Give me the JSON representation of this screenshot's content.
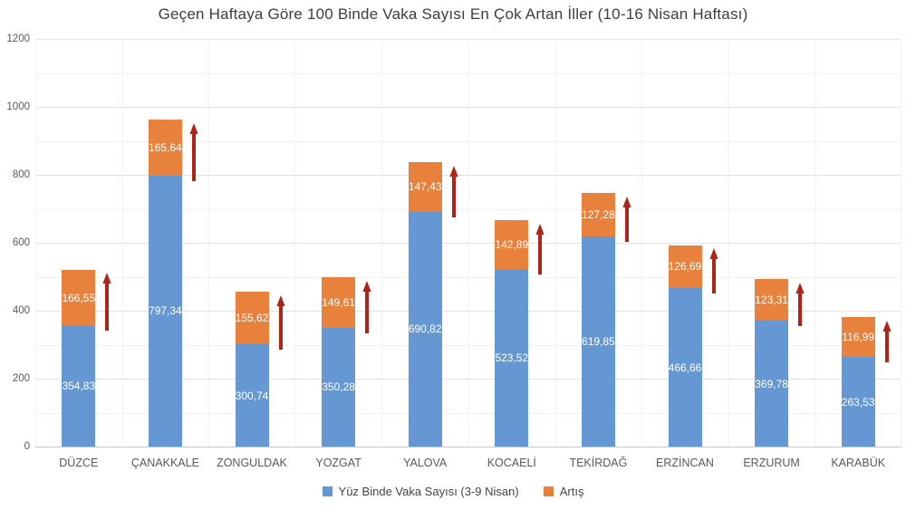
{
  "title": "Geçen Haftaya Göre 100 Binde Vaka Sayısı En Çok Artan İller (10-16 Nisan Haftası)",
  "chart_data": {
    "type": "bar",
    "stacked": true,
    "title": "Geçen Haftaya Göre 100 Binde Vaka Sayısı En Çok Artan İller (10-16 Nisan Haftası)",
    "categories": [
      "DÜZCE",
      "ÇANAKKALE",
      "ZONGULDAK",
      "YOZGAT",
      "YALOVA",
      "KOCAELİ",
      "TEKİRDAĞ",
      "ERZİNCAN",
      "ERZURUM",
      "KARABÜK"
    ],
    "series": [
      {
        "name": "Yüz Binde Vaka Sayısı (3-9 Nisan)",
        "color": "#6598d2",
        "values": [
          354.83,
          797.34,
          300.74,
          350.28,
          690.82,
          523.52,
          619.85,
          466.66,
          369.78,
          263.53
        ],
        "labels": [
          "354,83",
          "797,34",
          "300,74",
          "350,28",
          "690,82",
          "523,52",
          "619,85",
          "466,66",
          "369,78",
          "263,53"
        ]
      },
      {
        "name": "Artış",
        "color": "#e8813b",
        "values": [
          166.55,
          165.64,
          155.62,
          149.61,
          147.43,
          142.89,
          127.28,
          126.69,
          123.31,
          116.99
        ],
        "labels": [
          "166,55",
          "165,64",
          "155,62",
          "149,61",
          "147,43",
          "142,89",
          "127,28",
          "126,69",
          "123,31",
          "116,99"
        ]
      }
    ],
    "ylim": [
      0,
      1200
    ],
    "yticks": [
      0,
      200,
      400,
      600,
      800,
      1000,
      1200
    ],
    "minor_grid_step": 100,
    "grid": true,
    "legend_position": "bottom",
    "annotation": "dark-red upward arrow beside the increase segment of every bar",
    "arrow_color": "#b02318",
    "label_color_inside_bars": "#ffffff",
    "axis_label_color": "#595959",
    "title_color": "#3d3d3d"
  }
}
